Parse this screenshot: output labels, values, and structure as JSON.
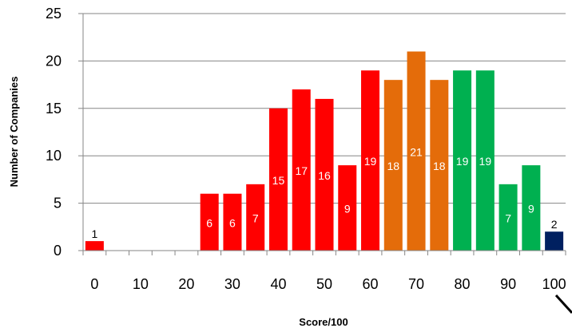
{
  "chart_data": {
    "type": "bar",
    "xlabel": "Score/100",
    "ylabel": "Number of Companies",
    "ylim": [
      0,
      25
    ],
    "yticks": [
      "0",
      "5",
      "10",
      "15",
      "20",
      "25"
    ],
    "xticks": [
      "0",
      "10",
      "20",
      "30",
      "40",
      "50",
      "60",
      "70",
      "80",
      "90",
      "100"
    ],
    "grid": "horizontal",
    "legend": "none",
    "colors": {
      "red": "#ff0000",
      "orange": "#e46c0a",
      "green": "#00b050",
      "navy": "#002060"
    },
    "bars": [
      {
        "x": 0,
        "value": 1,
        "label": "1",
        "color": "red"
      },
      {
        "x": 5,
        "value": 0,
        "label": "",
        "color": "red"
      },
      {
        "x": 10,
        "value": 0,
        "label": "",
        "color": "red"
      },
      {
        "x": 15,
        "value": 0,
        "label": "",
        "color": "red"
      },
      {
        "x": 20,
        "value": 0,
        "label": "",
        "color": "red"
      },
      {
        "x": 25,
        "value": 6,
        "label": "6",
        "color": "red"
      },
      {
        "x": 30,
        "value": 6,
        "label": "6",
        "color": "red"
      },
      {
        "x": 35,
        "value": 7,
        "label": "7",
        "color": "red"
      },
      {
        "x": 40,
        "value": 15,
        "label": "15",
        "color": "red"
      },
      {
        "x": 45,
        "value": 17,
        "label": "17",
        "color": "red"
      },
      {
        "x": 50,
        "value": 16,
        "label": "16",
        "color": "red"
      },
      {
        "x": 55,
        "value": 9,
        "label": "9",
        "color": "red"
      },
      {
        "x": 60,
        "value": 19,
        "label": "19",
        "color": "red"
      },
      {
        "x": 65,
        "value": 18,
        "label": "18",
        "color": "orange"
      },
      {
        "x": 70,
        "value": 21,
        "label": "21",
        "color": "orange"
      },
      {
        "x": 75,
        "value": 18,
        "label": "18",
        "color": "orange"
      },
      {
        "x": 80,
        "value": 19,
        "label": "19",
        "color": "green"
      },
      {
        "x": 85,
        "value": 19,
        "label": "19",
        "color": "green"
      },
      {
        "x": 90,
        "value": 7,
        "label": "7",
        "color": "green"
      },
      {
        "x": 95,
        "value": 9,
        "label": "9",
        "color": "green"
      },
      {
        "x": 100,
        "value": 2,
        "label": "2",
        "color": "navy"
      }
    ]
  }
}
